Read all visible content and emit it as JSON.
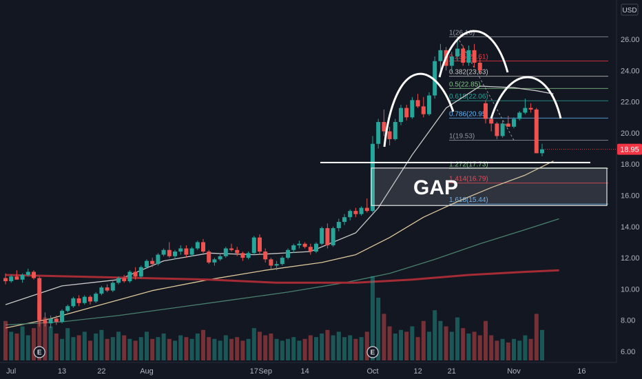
{
  "chart_data": {
    "type": "candlestick",
    "currency": "USD",
    "last_price": "18.95",
    "y_axis": {
      "ticks": [
        "26.00",
        "24.00",
        "22.00",
        "20.00",
        "18.00",
        "16.00",
        "14.00",
        "12.00",
        "10.00",
        "8.00",
        "6.00"
      ],
      "ylim": [
        5.6,
        27.4
      ]
    },
    "x_axis": {
      "ticks": [
        {
          "label": "Jul",
          "t": 1
        },
        {
          "label": "13",
          "t": 10
        },
        {
          "label": "22",
          "t": 17
        },
        {
          "label": "Aug",
          "t": 25
        },
        {
          "label": "17",
          "t": 44
        },
        {
          "label": "Sep",
          "t": 46
        },
        {
          "label": "14",
          "t": 53
        },
        {
          "label": "Oct",
          "t": 65
        },
        {
          "label": "12",
          "t": 73
        },
        {
          "label": "21",
          "t": 79
        },
        {
          "label": "Nov",
          "t": 90
        },
        {
          "label": "16",
          "t": 102
        }
      ]
    },
    "candles": [
      [
        10.7,
        11.0,
        10.3,
        10.5
      ],
      [
        10.5,
        10.9,
        10.4,
        10.8
      ],
      [
        10.8,
        11.2,
        10.6,
        10.6
      ],
      [
        10.6,
        11.0,
        10.4,
        10.9
      ],
      [
        10.9,
        11.3,
        10.8,
        11.1
      ],
      [
        11.1,
        11.2,
        10.6,
        10.7
      ],
      [
        10.7,
        10.8,
        7.6,
        8.0
      ],
      [
        8.0,
        8.5,
        7.6,
        7.8
      ],
      [
        7.8,
        8.3,
        7.5,
        8.1
      ],
      [
        8.1,
        8.3,
        7.7,
        7.9
      ],
      [
        7.9,
        8.7,
        7.8,
        8.6
      ],
      [
        8.6,
        9.0,
        8.5,
        8.9
      ],
      [
        8.9,
        9.5,
        8.8,
        9.4
      ],
      [
        9.4,
        9.6,
        8.9,
        9.1
      ],
      [
        9.1,
        9.6,
        9.0,
        9.5
      ],
      [
        9.5,
        9.6,
        9.0,
        9.2
      ],
      [
        9.2,
        9.8,
        9.1,
        9.7
      ],
      [
        9.7,
        10.2,
        9.6,
        10.1
      ],
      [
        10.1,
        10.3,
        9.8,
        9.9
      ],
      [
        9.9,
        10.5,
        9.8,
        10.4
      ],
      [
        10.4,
        10.8,
        10.3,
        10.7
      ],
      [
        10.7,
        10.9,
        10.4,
        10.5
      ],
      [
        10.5,
        11.2,
        10.4,
        11.1
      ],
      [
        11.1,
        11.4,
        10.6,
        10.8
      ],
      [
        10.8,
        11.5,
        10.7,
        11.4
      ],
      [
        11.4,
        11.9,
        11.3,
        11.8
      ],
      [
        11.8,
        12.0,
        11.4,
        11.6
      ],
      [
        11.6,
        12.3,
        11.5,
        12.2
      ],
      [
        12.2,
        12.6,
        12.1,
        12.5
      ],
      [
        12.5,
        13.0,
        12.0,
        12.1
      ],
      [
        12.1,
        12.5,
        11.9,
        12.4
      ],
      [
        12.4,
        12.8,
        12.2,
        12.6
      ],
      [
        12.6,
        12.8,
        12.0,
        12.2
      ],
      [
        12.2,
        12.7,
        12.1,
        12.6
      ],
      [
        12.6,
        13.1,
        12.5,
        13.0
      ],
      [
        13.0,
        13.2,
        12.3,
        12.4
      ],
      [
        12.4,
        12.5,
        11.6,
        11.7
      ],
      [
        11.7,
        12.0,
        11.5,
        11.9
      ],
      [
        11.9,
        12.3,
        11.8,
        12.1
      ],
      [
        12.1,
        12.7,
        12.0,
        12.6
      ],
      [
        12.6,
        12.9,
        12.4,
        12.5
      ],
      [
        12.5,
        12.7,
        12.1,
        12.3
      ],
      [
        12.3,
        12.4,
        11.8,
        12.0
      ],
      [
        12.0,
        12.4,
        11.9,
        12.3
      ],
      [
        12.3,
        13.4,
        12.2,
        13.3
      ],
      [
        13.3,
        13.5,
        12.2,
        12.4
      ],
      [
        12.4,
        12.6,
        11.7,
        11.9
      ],
      [
        11.9,
        12.0,
        11.3,
        11.5
      ],
      [
        11.5,
        11.8,
        11.2,
        11.6
      ],
      [
        11.6,
        12.1,
        11.5,
        12.0
      ],
      [
        12.0,
        12.6,
        11.9,
        12.5
      ],
      [
        12.5,
        12.9,
        12.3,
        12.8
      ],
      [
        12.8,
        13.1,
        12.6,
        12.9
      ],
      [
        12.9,
        13.0,
        12.6,
        12.7
      ],
      [
        12.7,
        12.9,
        12.2,
        12.4
      ],
      [
        12.4,
        13.0,
        12.3,
        12.9
      ],
      [
        12.9,
        14.0,
        12.8,
        13.9
      ],
      [
        13.9,
        14.2,
        12.6,
        12.8
      ],
      [
        12.8,
        14.0,
        12.7,
        13.9
      ],
      [
        13.9,
        14.5,
        13.7,
        14.3
      ],
      [
        14.3,
        14.8,
        14.1,
        14.6
      ],
      [
        14.6,
        15.1,
        14.4,
        15.0
      ],
      [
        15.0,
        15.2,
        14.6,
        14.8
      ],
      [
        14.8,
        15.3,
        14.7,
        15.2
      ],
      [
        15.2,
        15.8,
        14.9,
        15.0
      ],
      [
        15.0,
        19.8,
        14.9,
        19.3
      ],
      [
        19.3,
        20.9,
        19.0,
        20.7
      ],
      [
        20.7,
        21.5,
        19.8,
        20.1
      ],
      [
        20.1,
        20.4,
        19.2,
        19.6
      ],
      [
        19.6,
        20.9,
        19.5,
        20.7
      ],
      [
        20.7,
        21.8,
        20.5,
        21.6
      ],
      [
        21.6,
        21.8,
        20.8,
        21.0
      ],
      [
        21.0,
        22.3,
        20.9,
        22.1
      ],
      [
        22.1,
        22.5,
        21.6,
        21.7
      ],
      [
        21.7,
        22.3,
        21.0,
        21.2
      ],
      [
        21.2,
        22.6,
        21.1,
        22.4
      ],
      [
        22.4,
        24.9,
        22.2,
        24.6
      ],
      [
        24.6,
        25.7,
        23.8,
        25.3
      ],
      [
        25.3,
        25.5,
        24.0,
        24.3
      ],
      [
        24.3,
        25.2,
        23.9,
        24.9
      ],
      [
        24.9,
        26.1,
        24.6,
        25.4
      ],
      [
        25.4,
        25.6,
        24.3,
        24.5
      ],
      [
        24.5,
        25.6,
        24.3,
        25.3
      ],
      [
        25.3,
        25.7,
        24.2,
        24.5
      ],
      [
        24.5,
        24.8,
        23.8,
        24.0
      ],
      [
        21.9,
        22.1,
        20.6,
        20.9
      ],
      [
        20.9,
        21.0,
        20.1,
        20.6
      ],
      [
        20.6,
        20.7,
        19.6,
        19.8
      ],
      [
        19.8,
        20.8,
        19.7,
        20.6
      ],
      [
        20.6,
        21.1,
        20.4,
        20.4
      ],
      [
        20.4,
        21.0,
        20.3,
        20.9
      ],
      [
        20.9,
        21.4,
        20.8,
        21.3
      ],
      [
        21.3,
        22.2,
        21.2,
        21.6
      ],
      [
        21.6,
        21.9,
        21.3,
        21.5
      ],
      [
        21.5,
        21.6,
        18.7,
        18.7
      ],
      [
        18.7,
        19.3,
        18.5,
        18.95
      ]
    ],
    "volume": [
      2.2,
      1.6,
      1.5,
      1.9,
      1.4,
      1.8,
      3.3,
      2.4,
      1.9,
      1.5,
      1.2,
      1.8,
      1.3,
      1.4,
      1.6,
      1.1,
      1.5,
      1.7,
      1.2,
      1.3,
      1.6,
      1.4,
      1.2,
      1.1,
      1.3,
      1.6,
      1.2,
      1.3,
      1.5,
      1.2,
      1.1,
      1.4,
      1.3,
      1.2,
      1.5,
      1.7,
      1.3,
      1.2,
      1.1,
      1.4,
      1.2,
      1.3,
      1.1,
      1.2,
      1.8,
      1.6,
      1.4,
      1.5,
      1.2,
      1.1,
      1.2,
      1.3,
      1.1,
      1.2,
      1.4,
      1.3,
      1.5,
      1.7,
      1.4,
      1.6,
      1.3,
      1.4,
      1.2,
      1.3,
      1.6,
      4.7,
      3.5,
      2.6,
      1.9,
      1.5,
      1.7,
      1.6,
      1.9,
      1.3,
      2.2,
      1.6,
      2.8,
      2.2,
      1.9,
      1.6,
      2.4,
      1.8,
      1.5,
      1.6,
      1.4,
      2.2,
      1.4,
      1.1,
      1.2,
      1.0,
      1.2,
      1.1,
      1.4,
      1.2,
      2.6,
      1.7
    ],
    "earnings_markers": [
      {
        "label": "E",
        "t": 6
      },
      {
        "label": "E",
        "t": 65
      }
    ],
    "moving_averages": [
      {
        "color": "#c9c9c9",
        "points": [
          [
            0,
            9.0
          ],
          [
            10,
            10.2
          ],
          [
            20,
            10.6
          ],
          [
            28,
            11.8
          ],
          [
            36,
            12.3
          ],
          [
            44,
            12.2
          ],
          [
            54,
            12.4
          ],
          [
            62,
            13.6
          ],
          [
            66,
            15.2
          ],
          [
            72,
            18.6
          ],
          [
            78,
            21.6
          ],
          [
            84,
            23.0
          ],
          [
            90,
            22.9
          ],
          [
            94,
            22.7
          ],
          [
            97,
            22.5
          ]
        ]
      },
      {
        "color": "#ddc89a",
        "points": [
          [
            0,
            7.5
          ],
          [
            8,
            8.1
          ],
          [
            16,
            8.9
          ],
          [
            26,
            9.9
          ],
          [
            36,
            10.6
          ],
          [
            46,
            11.2
          ],
          [
            56,
            11.7
          ],
          [
            62,
            12.2
          ],
          [
            68,
            13.3
          ],
          [
            74,
            14.6
          ],
          [
            80,
            15.6
          ],
          [
            86,
            16.5
          ],
          [
            92,
            17.3
          ],
          [
            97,
            18.2
          ]
        ]
      },
      {
        "color": "#49806e",
        "points": [
          [
            0,
            7.7
          ],
          [
            10,
            7.9
          ],
          [
            20,
            8.3
          ],
          [
            30,
            8.8
          ],
          [
            40,
            9.3
          ],
          [
            50,
            9.8
          ],
          [
            60,
            10.4
          ],
          [
            68,
            11.0
          ],
          [
            76,
            11.9
          ],
          [
            84,
            12.9
          ],
          [
            92,
            13.8
          ],
          [
            98,
            14.5
          ]
        ]
      },
      {
        "color": "#a52b34",
        "width": 3,
        "points": [
          [
            0,
            10.9
          ],
          [
            12,
            10.8
          ],
          [
            24,
            10.7
          ],
          [
            36,
            10.6
          ],
          [
            48,
            10.4
          ],
          [
            62,
            10.4
          ],
          [
            72,
            10.6
          ],
          [
            82,
            10.9
          ],
          [
            92,
            11.1
          ],
          [
            98,
            11.2
          ]
        ]
      }
    ],
    "fib_levels": [
      {
        "label": "1(26.16)",
        "price": 26.16,
        "color": "#9598a1"
      },
      {
        "label": "0.236(24.61)",
        "price": 24.61,
        "color": "#f23645"
      },
      {
        "label": "0.382(23.63)",
        "price": 23.63,
        "color": "#c8c8c8"
      },
      {
        "label": "0.5(22.85)",
        "price": 22.85,
        "color": "#81c784"
      },
      {
        "label": "0.618(22.06)",
        "price": 22.06,
        "color": "#26a69a"
      },
      {
        "label": "0.786(20.95)",
        "price": 20.95,
        "color": "#64b5f6"
      },
      {
        "label": "1(19.53)",
        "price": 19.53,
        "color": "#9598a1"
      },
      {
        "label": "1.272(17.73)",
        "price": 17.73,
        "color": "#81c784"
      },
      {
        "label": "1.414(16.79)",
        "price": 16.79,
        "color": "#f23645"
      },
      {
        "label": "1.618(15.44)",
        "price": 15.44,
        "color": "#64b5f6"
      }
    ],
    "annotations": {
      "gap_label": "GAP",
      "neckline_price": 18.1,
      "gap_box": {
        "price_top": 17.75,
        "price_bottom": 15.35,
        "t_start": 65,
        "t_end": 134
      }
    }
  }
}
